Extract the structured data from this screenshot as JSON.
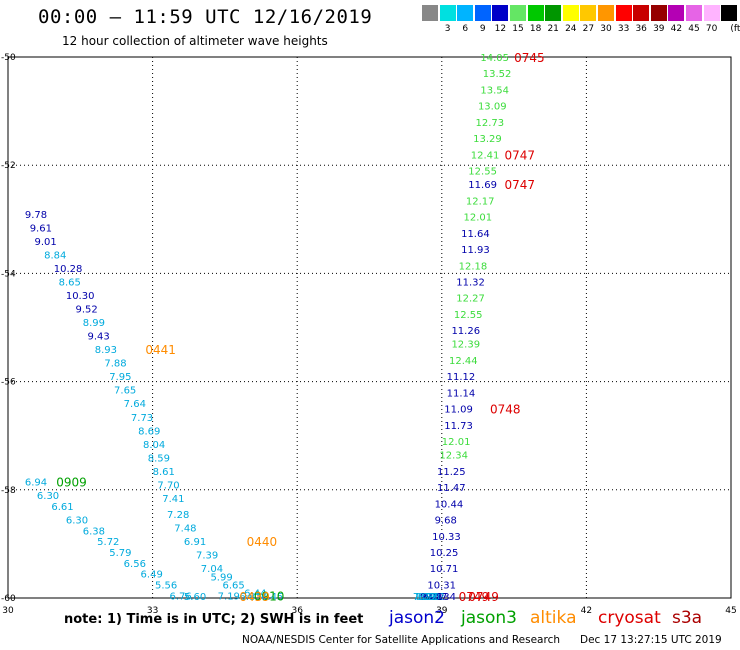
{
  "title": "00:00 – 11:59 UTC 12/16/2019",
  "subtitle": "12 hour collection of altimeter wave heights",
  "legend": {
    "unit": "(ft)",
    "swatches": [
      {
        "color": "#888888",
        "label": ""
      },
      {
        "color": "#00e0e0",
        "label": "3"
      },
      {
        "color": "#00b4ff",
        "label": "6"
      },
      {
        "color": "#0064ff",
        "label": "9"
      },
      {
        "color": "#0000c8",
        "label": "12"
      },
      {
        "color": "#64e664",
        "label": "15"
      },
      {
        "color": "#00c800",
        "label": "18"
      },
      {
        "color": "#009600",
        "label": "21"
      },
      {
        "color": "#ffff00",
        "label": "24"
      },
      {
        "color": "#ffc800",
        "label": "27"
      },
      {
        "color": "#ff9600",
        "label": "30"
      },
      {
        "color": "#ff0000",
        "label": "33"
      },
      {
        "color": "#c80000",
        "label": "36"
      },
      {
        "color": "#960000",
        "label": "39"
      },
      {
        "color": "#b400b4",
        "label": "42"
      },
      {
        "color": "#e664e6",
        "label": "45"
      },
      {
        "color": "#ffb4ff",
        "label": "70"
      },
      {
        "color": "#000000",
        "label": ""
      }
    ]
  },
  "axes": {
    "lon_ticks": [
      "30",
      "33",
      "36",
      "39",
      "42",
      "45"
    ],
    "lat_ticks": [
      "-50",
      "-52",
      "-54",
      "-56",
      "-58",
      "-60"
    ]
  },
  "colors": {
    "jason2": "#0000aa",
    "jason3": "#00a000",
    "jason3_light": "#3cdc3c",
    "altika": "#ff8c00",
    "cryosat": "#dd0000",
    "cyan": "#00aadd"
  },
  "observations": [
    {
      "lon": 30.35,
      "lat": -52.9,
      "text": "9.78",
      "sat": "jason2"
    },
    {
      "lon": 30.45,
      "lat": -53.15,
      "text": "9.61",
      "sat": "jason2"
    },
    {
      "lon": 30.55,
      "lat": -53.4,
      "text": "9.01",
      "sat": "jason2"
    },
    {
      "lon": 30.75,
      "lat": -53.65,
      "text": "8.84",
      "sat": "cyan"
    },
    {
      "lon": 30.95,
      "lat": -53.9,
      "text": "10.28",
      "sat": "jason2"
    },
    {
      "lon": 31.05,
      "lat": -54.15,
      "text": "8.65",
      "sat": "cyan"
    },
    {
      "lon": 31.2,
      "lat": -54.4,
      "text": "10.30",
      "sat": "jason2"
    },
    {
      "lon": 31.4,
      "lat": -54.65,
      "text": "9.52",
      "sat": "jason2"
    },
    {
      "lon": 31.55,
      "lat": -54.9,
      "text": "8.99",
      "sat": "cyan"
    },
    {
      "lon": 31.65,
      "lat": -55.15,
      "text": "9.43",
      "sat": "jason2"
    },
    {
      "lon": 31.8,
      "lat": -55.4,
      "text": "8.93",
      "sat": "cyan"
    },
    {
      "lon": 32.0,
      "lat": -55.65,
      "text": "7.88",
      "sat": "cyan"
    },
    {
      "lon": 32.1,
      "lat": -55.9,
      "text": "7.95",
      "sat": "cyan"
    },
    {
      "lon": 32.2,
      "lat": -56.15,
      "text": "7.65",
      "sat": "cyan"
    },
    {
      "lon": 32.4,
      "lat": -56.4,
      "text": "7.64",
      "sat": "cyan"
    },
    {
      "lon": 32.55,
      "lat": -56.65,
      "text": "7.73",
      "sat": "cyan"
    },
    {
      "lon": 32.7,
      "lat": -56.9,
      "text": "8.69",
      "sat": "cyan"
    },
    {
      "lon": 32.8,
      "lat": -57.15,
      "text": "8.04",
      "sat": "cyan"
    },
    {
      "lon": 32.9,
      "lat": -57.4,
      "text": "8.59",
      "sat": "cyan"
    },
    {
      "lon": 33.0,
      "lat": -57.65,
      "text": "8.61",
      "sat": "cyan"
    },
    {
      "lon": 33.1,
      "lat": -57.9,
      "text": "7.70",
      "sat": "cyan"
    },
    {
      "lon": 33.2,
      "lat": -58.15,
      "text": "7.41",
      "sat": "cyan"
    },
    {
      "lon": 33.3,
      "lat": -58.45,
      "text": "7.28",
      "sat": "cyan"
    },
    {
      "lon": 33.45,
      "lat": -58.7,
      "text": "7.48",
      "sat": "cyan"
    },
    {
      "lon": 33.65,
      "lat": -58.95,
      "text": "6.91",
      "sat": "cyan"
    },
    {
      "lon": 33.9,
      "lat": -59.2,
      "text": "7.39",
      "sat": "cyan"
    },
    {
      "lon": 34.0,
      "lat": -59.45,
      "text": "7.04",
      "sat": "cyan"
    },
    {
      "lon": 34.2,
      "lat": -59.6,
      "text": "5.99",
      "sat": "cyan"
    },
    {
      "lon": 34.45,
      "lat": -59.75,
      "text": "6.65",
      "sat": "cyan"
    },
    {
      "lon": 34.9,
      "lat": -59.9,
      "text": "6.44",
      "sat": "cyan"
    },
    {
      "lon": 34.35,
      "lat": -59.95,
      "text": "7.19",
      "sat": "cyan"
    },
    {
      "lon": 35.25,
      "lat": -60.0,
      "text": "6.45",
      "sat": "cyan"
    },
    {
      "lon": 34.8,
      "lat": -60.2,
      "text": "6.83",
      "sat": "cyan"
    },
    {
      "lon": 30.35,
      "lat": -57.85,
      "text": "6.94",
      "sat": "cyan"
    },
    {
      "lon": 30.6,
      "lat": -58.1,
      "text": "6.30",
      "sat": "cyan"
    },
    {
      "lon": 30.9,
      "lat": -58.3,
      "text": "6.61",
      "sat": "cyan"
    },
    {
      "lon": 31.2,
      "lat": -58.55,
      "text": "6.30",
      "sat": "cyan"
    },
    {
      "lon": 31.55,
      "lat": -58.75,
      "text": "6.38",
      "sat": "cyan"
    },
    {
      "lon": 31.85,
      "lat": -58.95,
      "text": "5.72",
      "sat": "cyan"
    },
    {
      "lon": 32.1,
      "lat": -59.15,
      "text": "5.79",
      "sat": "cyan"
    },
    {
      "lon": 32.4,
      "lat": -59.35,
      "text": "6.56",
      "sat": "cyan"
    },
    {
      "lon": 32.75,
      "lat": -59.55,
      "text": "6.49",
      "sat": "cyan"
    },
    {
      "lon": 33.05,
      "lat": -59.75,
      "text": "5.56",
      "sat": "cyan"
    },
    {
      "lon": 33.35,
      "lat": -59.95,
      "text": "6.76",
      "sat": "cyan"
    },
    {
      "lon": 33.65,
      "lat": -60.1,
      "text": "5.60",
      "sat": "cyan"
    },
    {
      "lon": 39.8,
      "lat": -50.0,
      "text": "14.05",
      "sat": "jason3_light"
    },
    {
      "lon": 39.85,
      "lat": -50.3,
      "text": "13.52",
      "sat": "jason3_light"
    },
    {
      "lon": 39.8,
      "lat": -50.6,
      "text": "13.54",
      "sat": "jason3_light"
    },
    {
      "lon": 39.75,
      "lat": -50.9,
      "text": "13.09",
      "sat": "jason3_light"
    },
    {
      "lon": 39.7,
      "lat": -51.2,
      "text": "12.73",
      "sat": "jason3_light"
    },
    {
      "lon": 39.65,
      "lat": -51.5,
      "text": "13.29",
      "sat": "jason3_light"
    },
    {
      "lon": 39.6,
      "lat": -51.8,
      "text": "12.41",
      "sat": "jason3_light"
    },
    {
      "lon": 39.55,
      "lat": -52.1,
      "text": "12.55",
      "sat": "jason3_light"
    },
    {
      "lon": 39.55,
      "lat": -52.35,
      "text": "11.69",
      "sat": "jason2"
    },
    {
      "lon": 39.5,
      "lat": -52.65,
      "text": "12.17",
      "sat": "jason3_light"
    },
    {
      "lon": 39.45,
      "lat": -52.95,
      "text": "12.01",
      "sat": "jason3_light"
    },
    {
      "lon": 39.4,
      "lat": -53.25,
      "text": "11.64",
      "sat": "jason2"
    },
    {
      "lon": 39.4,
      "lat": -53.55,
      "text": "11.93",
      "sat": "jason2"
    },
    {
      "lon": 39.35,
      "lat": -53.85,
      "text": "12.18",
      "sat": "jason3_light"
    },
    {
      "lon": 39.3,
      "lat": -54.15,
      "text": "11.32",
      "sat": "jason2"
    },
    {
      "lon": 39.3,
      "lat": -54.45,
      "text": "12.27",
      "sat": "jason3_light"
    },
    {
      "lon": 39.25,
      "lat": -54.75,
      "text": "12.55",
      "sat": "jason3_light"
    },
    {
      "lon": 39.2,
      "lat": -55.05,
      "text": "11.26",
      "sat": "jason2"
    },
    {
      "lon": 39.2,
      "lat": -55.3,
      "text": "12.39",
      "sat": "jason3_light"
    },
    {
      "lon": 39.15,
      "lat": -55.6,
      "text": "12.44",
      "sat": "jason3_light"
    },
    {
      "lon": 39.1,
      "lat": -55.9,
      "text": "11.12",
      "sat": "jason2"
    },
    {
      "lon": 39.1,
      "lat": -56.2,
      "text": "11.14",
      "sat": "jason2"
    },
    {
      "lon": 39.05,
      "lat": -56.5,
      "text": "11.09",
      "sat": "jason2"
    },
    {
      "lon": 39.05,
      "lat": -56.8,
      "text": "11.73",
      "sat": "jason2"
    },
    {
      "lon": 39.0,
      "lat": -57.1,
      "text": "12.01",
      "sat": "jason3_light"
    },
    {
      "lon": 38.95,
      "lat": -57.35,
      "text": "12.34",
      "sat": "jason3_light"
    },
    {
      "lon": 38.9,
      "lat": -57.65,
      "text": "11.25",
      "sat": "jason2"
    },
    {
      "lon": 38.9,
      "lat": -57.95,
      "text": "11.47",
      "sat": "jason2"
    },
    {
      "lon": 38.85,
      "lat": -58.25,
      "text": "10.44",
      "sat": "jason2"
    },
    {
      "lon": 38.85,
      "lat": -58.55,
      "text": "9.68",
      "sat": "jason2"
    },
    {
      "lon": 38.8,
      "lat": -58.85,
      "text": "10.33",
      "sat": "jason2"
    },
    {
      "lon": 38.75,
      "lat": -59.15,
      "text": "10.25",
      "sat": "jason2"
    },
    {
      "lon": 38.75,
      "lat": -59.45,
      "text": "10.71",
      "sat": "jason2"
    },
    {
      "lon": 38.7,
      "lat": -59.75,
      "text": "10.31",
      "sat": "jason2"
    },
    {
      "lon": 38.7,
      "lat": -60.05,
      "text": "10.34",
      "sat": "jason2"
    },
    {
      "lon": 38.65,
      "lat": -60.35,
      "text": "9.97",
      "sat": "jason2"
    },
    {
      "lon": 38.6,
      "lat": -60.65,
      "text": "9.17",
      "sat": "jason2"
    },
    {
      "lon": 38.6,
      "lat": -60.95,
      "text": "8.32",
      "sat": "cyan"
    },
    {
      "lon": 38.55,
      "lat": -61.25,
      "text": "9.22",
      "sat": "jason2"
    },
    {
      "lon": 38.55,
      "lat": -61.55,
      "text": "9.08",
      "sat": "jason2"
    },
    {
      "lon": 38.5,
      "lat": -61.85,
      "text": "8.20",
      "sat": "cyan"
    },
    {
      "lon": 38.45,
      "lat": -62.15,
      "text": "8.22",
      "sat": "cyan"
    },
    {
      "lon": 38.4,
      "lat": -62.45,
      "text": "7.29",
      "sat": "cyan"
    }
  ],
  "time_labels": [
    {
      "lon": 40.5,
      "lat": -50.0,
      "text": "0745",
      "sat": "cryosat"
    },
    {
      "lon": 40.3,
      "lat": -51.8,
      "text": "0747",
      "sat": "cryosat"
    },
    {
      "lon": 40.3,
      "lat": -52.35,
      "text": "0747",
      "sat": "cryosat"
    },
    {
      "lon": 40.0,
      "lat": -56.5,
      "text": "0748",
      "sat": "cryosat"
    },
    {
      "lon": 32.85,
      "lat": -55.4,
      "text": "0441",
      "sat": "altika"
    },
    {
      "lon": 31.0,
      "lat": -57.85,
      "text": "0909",
      "sat": "jason3"
    },
    {
      "lon": 34.95,
      "lat": -58.95,
      "text": "0440",
      "sat": "altika"
    },
    {
      "lon": 35.1,
      "lat": -59.95,
      "text": "0910",
      "sat": "jason3"
    },
    {
      "lon": 34.8,
      "lat": -60.2,
      "text": "0439",
      "sat": "altika"
    },
    {
      "lon": 39.55,
      "lat": -60.95,
      "text": "0749",
      "sat": "cryosat"
    },
    {
      "lon": 39.35,
      "lat": -61.85,
      "text": "0749",
      "sat": "cryosat"
    }
  ],
  "note": "note: 1) Time is in UTC; 2) SWH is in feet",
  "satellites": [
    {
      "name": "jason2",
      "color": "#0000cc"
    },
    {
      "name": "jason3",
      "color": "#00a000"
    },
    {
      "name": "altika",
      "color": "#ff8c00"
    },
    {
      "name": "cryosat",
      "color": "#dd0000"
    },
    {
      "name": "s3a",
      "color": "#aa0000"
    }
  ],
  "credit": "NOAA/NESDIS Center for Satellite Applications and Research",
  "timestamp": "Dec 17 13:27:15 UTC 2019"
}
